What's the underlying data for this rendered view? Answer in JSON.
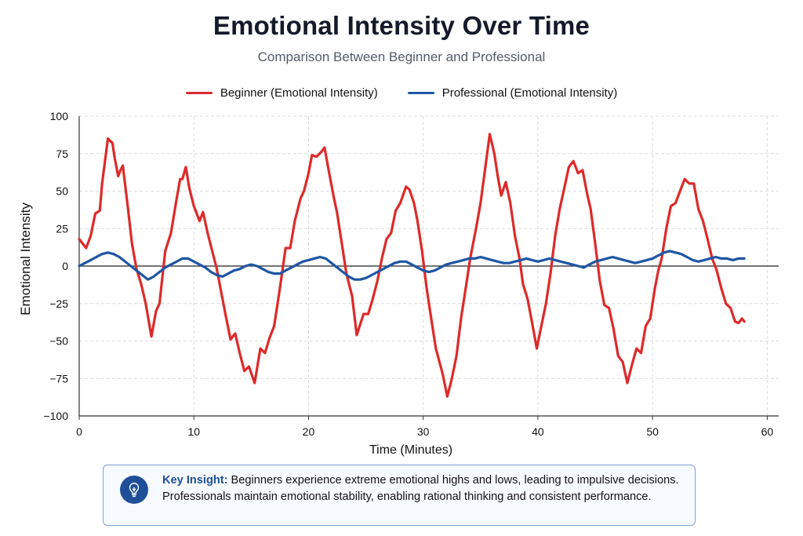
{
  "chart_data": {
    "type": "line",
    "title": "Emotional Intensity Over Time",
    "subtitle": "Comparison Between Beginner and Professional",
    "xlabel": "Time (Minutes)",
    "ylabel": "Emotional Intensity",
    "xlim": [
      0,
      61
    ],
    "ylim": [
      -100,
      100
    ],
    "xticks": [
      0,
      10,
      20,
      30,
      40,
      50,
      60
    ],
    "yticks": [
      100,
      75,
      50,
      25,
      0,
      -25,
      -50,
      -75,
      -100
    ],
    "grid": true,
    "legend_position": "top-center",
    "series": [
      {
        "name": "Beginner (Emotional Intensity)",
        "color": "#dd2a2a",
        "points": [
          [
            0,
            18
          ],
          [
            0.6,
            12
          ],
          [
            1,
            20
          ],
          [
            1.4,
            35
          ],
          [
            1.8,
            37
          ],
          [
            2,
            55
          ],
          [
            2.5,
            85
          ],
          [
            2.9,
            82
          ],
          [
            3.1,
            72
          ],
          [
            3.4,
            60
          ],
          [
            3.6,
            64
          ],
          [
            3.8,
            67
          ],
          [
            4.2,
            42
          ],
          [
            4.6,
            15
          ],
          [
            5,
            -2
          ],
          [
            5.4,
            -12
          ],
          [
            5.8,
            -25
          ],
          [
            6.3,
            -47
          ],
          [
            6.7,
            -30
          ],
          [
            7,
            -25
          ],
          [
            7.5,
            10
          ],
          [
            8,
            22
          ],
          [
            8.5,
            45
          ],
          [
            8.8,
            58
          ],
          [
            9,
            58
          ],
          [
            9.3,
            66
          ],
          [
            9.6,
            52
          ],
          [
            10,
            40
          ],
          [
            10.5,
            30
          ],
          [
            10.8,
            36
          ],
          [
            11.2,
            22
          ],
          [
            11.6,
            10
          ],
          [
            12,
            -2
          ],
          [
            12.4,
            -18
          ],
          [
            12.8,
            -34
          ],
          [
            13.2,
            -49
          ],
          [
            13.6,
            -45
          ],
          [
            14,
            -58
          ],
          [
            14.4,
            -70
          ],
          [
            14.8,
            -67
          ],
          [
            15.3,
            -78
          ],
          [
            15.8,
            -55
          ],
          [
            16.2,
            -58
          ],
          [
            16.6,
            -48
          ],
          [
            17,
            -40
          ],
          [
            17.5,
            -15
          ],
          [
            18,
            12
          ],
          [
            18.4,
            12
          ],
          [
            18.8,
            30
          ],
          [
            19.3,
            45
          ],
          [
            19.6,
            50
          ],
          [
            20,
            62
          ],
          [
            20.3,
            74
          ],
          [
            20.7,
            73
          ],
          [
            21.1,
            76
          ],
          [
            21.4,
            79
          ],
          [
            21.8,
            62
          ],
          [
            22.2,
            46
          ],
          [
            22.5,
            35
          ],
          [
            22.9,
            15
          ],
          [
            23.3,
            -5
          ],
          [
            23.8,
            -20
          ],
          [
            24.2,
            -46
          ],
          [
            24.8,
            -32
          ],
          [
            25.2,
            -32
          ],
          [
            25.6,
            -22
          ],
          [
            26,
            -10
          ],
          [
            26.4,
            5
          ],
          [
            26.8,
            18
          ],
          [
            27.2,
            22
          ],
          [
            27.6,
            37
          ],
          [
            28,
            42
          ],
          [
            28.5,
            53
          ],
          [
            28.8,
            51
          ],
          [
            29.2,
            42
          ],
          [
            29.5,
            30
          ],
          [
            29.9,
            10
          ],
          [
            30.3,
            -15
          ],
          [
            30.7,
            -35
          ],
          [
            31.1,
            -55
          ],
          [
            31.7,
            -72
          ],
          [
            32.1,
            -87
          ],
          [
            32.5,
            -75
          ],
          [
            32.9,
            -60
          ],
          [
            33.3,
            -35
          ],
          [
            33.7,
            -15
          ],
          [
            34.1,
            5
          ],
          [
            34.6,
            25
          ],
          [
            35,
            42
          ],
          [
            35.4,
            65
          ],
          [
            35.8,
            88
          ],
          [
            36.2,
            75
          ],
          [
            36.5,
            60
          ],
          [
            36.8,
            47
          ],
          [
            37.2,
            56
          ],
          [
            37.6,
            42
          ],
          [
            38,
            20
          ],
          [
            38.4,
            5
          ],
          [
            38.7,
            -12
          ],
          [
            39.1,
            -22
          ],
          [
            39.5,
            -38
          ],
          [
            39.9,
            -55
          ],
          [
            40.3,
            -40
          ],
          [
            40.7,
            -25
          ],
          [
            41.1,
            -5
          ],
          [
            41.5,
            20
          ],
          [
            41.9,
            38
          ],
          [
            42.3,
            52
          ],
          [
            42.7,
            66
          ],
          [
            43.1,
            70
          ],
          [
            43.5,
            62
          ],
          [
            43.9,
            64
          ],
          [
            44.3,
            48
          ],
          [
            44.6,
            38
          ],
          [
            45,
            15
          ],
          [
            45.4,
            -10
          ],
          [
            45.8,
            -26
          ],
          [
            46.2,
            -28
          ],
          [
            46.6,
            -42
          ],
          [
            47,
            -60
          ],
          [
            47.4,
            -64
          ],
          [
            47.8,
            -78
          ],
          [
            48.2,
            -66
          ],
          [
            48.6,
            -55
          ],
          [
            49,
            -58
          ],
          [
            49.4,
            -40
          ],
          [
            49.8,
            -35
          ],
          [
            50.2,
            -15
          ],
          [
            50.5,
            -3
          ],
          [
            50.8,
            5
          ],
          [
            51.2,
            25
          ],
          [
            51.6,
            40
          ],
          [
            52,
            42
          ],
          [
            52.4,
            50
          ],
          [
            52.8,
            58
          ],
          [
            53.2,
            55
          ],
          [
            53.6,
            55
          ],
          [
            54,
            38
          ],
          [
            54.4,
            30
          ],
          [
            54.8,
            18
          ],
          [
            55.2,
            5
          ],
          [
            55.6,
            -3
          ],
          [
            56,
            -15
          ],
          [
            56.4,
            -25
          ],
          [
            56.8,
            -28
          ],
          [
            57.2,
            -37
          ],
          [
            57.5,
            -38
          ],
          [
            57.8,
            -35
          ],
          [
            58,
            -37
          ]
        ]
      },
      {
        "name": "Professional (Emotional Intensity)",
        "color": "#1f56a4",
        "points": [
          [
            0,
            0
          ],
          [
            0.5,
            2
          ],
          [
            1,
            4
          ],
          [
            1.5,
            6
          ],
          [
            2,
            8
          ],
          [
            2.5,
            9
          ],
          [
            3,
            8
          ],
          [
            3.5,
            6
          ],
          [
            4,
            3
          ],
          [
            4.5,
            0
          ],
          [
            5,
            -3
          ],
          [
            5.5,
            -6
          ],
          [
            6,
            -9
          ],
          [
            6.5,
            -7
          ],
          [
            7,
            -4
          ],
          [
            7.5,
            -1
          ],
          [
            8,
            1
          ],
          [
            8.5,
            3
          ],
          [
            9,
            5
          ],
          [
            9.5,
            5
          ],
          [
            10,
            3
          ],
          [
            10.5,
            1
          ],
          [
            11,
            -1
          ],
          [
            11.5,
            -4
          ],
          [
            12,
            -6
          ],
          [
            12.5,
            -7
          ],
          [
            13,
            -5
          ],
          [
            13.5,
            -3
          ],
          [
            14,
            -2
          ],
          [
            14.5,
            0
          ],
          [
            15,
            1
          ],
          [
            15.5,
            0
          ],
          [
            16,
            -2
          ],
          [
            16.5,
            -4
          ],
          [
            17,
            -5
          ],
          [
            17.5,
            -5
          ],
          [
            18,
            -3
          ],
          [
            18.5,
            -1
          ],
          [
            19,
            1
          ],
          [
            19.5,
            3
          ],
          [
            20,
            4
          ],
          [
            20.5,
            5
          ],
          [
            21,
            6
          ],
          [
            21.5,
            5
          ],
          [
            22,
            2
          ],
          [
            22.5,
            -1
          ],
          [
            23,
            -4
          ],
          [
            23.5,
            -7
          ],
          [
            24,
            -9
          ],
          [
            24.5,
            -9
          ],
          [
            25,
            -8
          ],
          [
            25.5,
            -6
          ],
          [
            26,
            -4
          ],
          [
            26.5,
            -2
          ],
          [
            27,
            0
          ],
          [
            27.5,
            2
          ],
          [
            28,
            3
          ],
          [
            28.5,
            3
          ],
          [
            29,
            1
          ],
          [
            29.5,
            -1
          ],
          [
            30,
            -3
          ],
          [
            30.5,
            -4
          ],
          [
            31,
            -3
          ],
          [
            31.5,
            -1
          ],
          [
            32,
            1
          ],
          [
            32.5,
            2
          ],
          [
            33,
            3
          ],
          [
            33.5,
            4
          ],
          [
            34,
            5
          ],
          [
            34.5,
            5
          ],
          [
            35,
            6
          ],
          [
            35.5,
            5
          ],
          [
            36,
            4
          ],
          [
            36.5,
            3
          ],
          [
            37,
            2
          ],
          [
            37.5,
            2
          ],
          [
            38,
            3
          ],
          [
            38.5,
            4
          ],
          [
            39,
            5
          ],
          [
            39.5,
            4
          ],
          [
            40,
            3
          ],
          [
            40.5,
            4
          ],
          [
            41,
            5
          ],
          [
            41.5,
            4
          ],
          [
            42,
            3
          ],
          [
            42.5,
            2
          ],
          [
            43,
            1
          ],
          [
            43.5,
            0
          ],
          [
            44,
            -1
          ],
          [
            44.5,
            1
          ],
          [
            45,
            3
          ],
          [
            45.5,
            4
          ],
          [
            46,
            5
          ],
          [
            46.5,
            6
          ],
          [
            47,
            5
          ],
          [
            47.5,
            4
          ],
          [
            48,
            3
          ],
          [
            48.5,
            2
          ],
          [
            49,
            3
          ],
          [
            49.5,
            4
          ],
          [
            50,
            5
          ],
          [
            50.5,
            7
          ],
          [
            51,
            9
          ],
          [
            51.5,
            10
          ],
          [
            52,
            9
          ],
          [
            52.5,
            8
          ],
          [
            53,
            6
          ],
          [
            53.5,
            4
          ],
          [
            54,
            3
          ],
          [
            54.5,
            4
          ],
          [
            55,
            5
          ],
          [
            55.5,
            6
          ],
          [
            56,
            5
          ],
          [
            56.5,
            5
          ],
          [
            57,
            4
          ],
          [
            57.5,
            5
          ],
          [
            58,
            5
          ]
        ]
      }
    ]
  },
  "insight": {
    "label": "Key Insight:",
    "text": "Beginners experience extreme emotional highs and lows, leading to impulsive decisions. Professionals maintain emotional stability, enabling rational thinking and consistent performance."
  },
  "icons": {
    "insight": "lightbulb-icon"
  }
}
